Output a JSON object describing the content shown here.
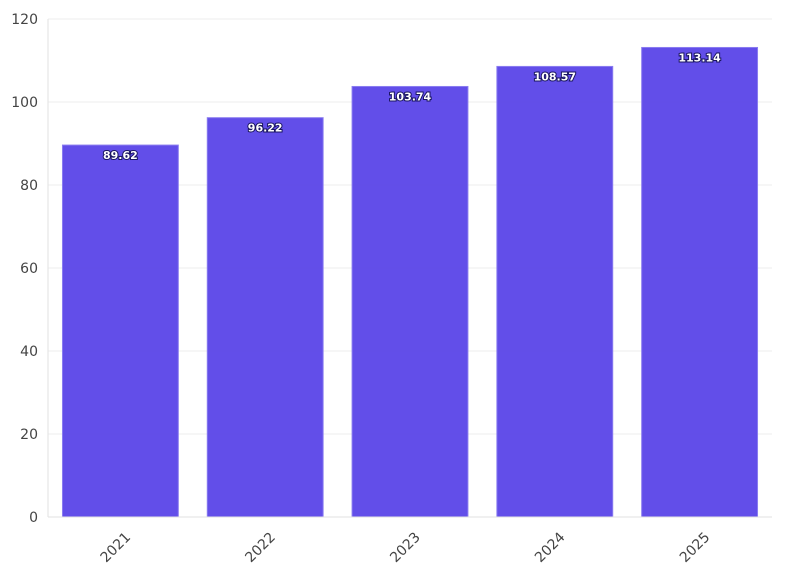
{
  "chart_data": {
    "type": "bar",
    "categories": [
      "2021",
      "2022",
      "2023",
      "2024",
      "2025"
    ],
    "values": [
      89.62,
      96.22,
      103.74,
      108.57,
      113.14
    ],
    "data_labels": [
      "89.62",
      "96.22",
      "103.74",
      "108.57",
      "113.14"
    ],
    "title": "",
    "xlabel": "",
    "ylabel": "",
    "ylim": [
      0,
      120
    ],
    "yticks": [
      0,
      20,
      40,
      60,
      80,
      100,
      120
    ],
    "ytick_labels": [
      "0",
      "20",
      "40",
      "60",
      "80",
      "100",
      "120"
    ],
    "grid": true,
    "legend": "none",
    "x_tick_rotation_deg": -45,
    "colors": {
      "bar": "#5a45e8",
      "bar_stroke": "#8a7cf0",
      "grid": "#ececec",
      "tick_text": "#444444"
    }
  }
}
